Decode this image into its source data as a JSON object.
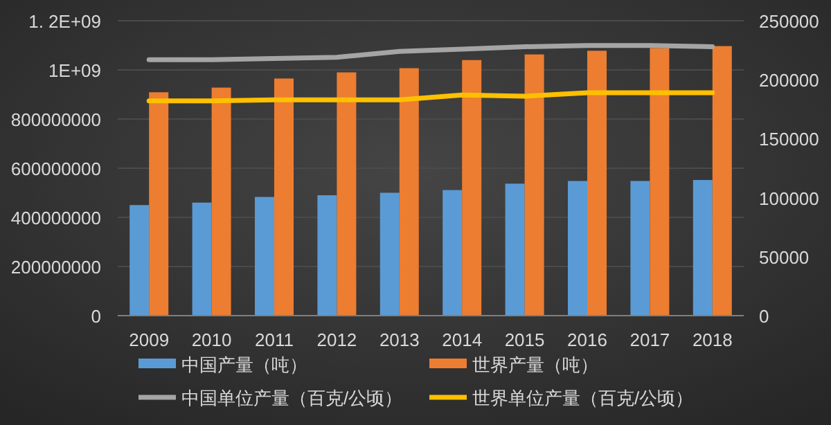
{
  "chart_data": {
    "type": "bar",
    "categories": [
      "2009",
      "2010",
      "2011",
      "2012",
      "2013",
      "2014",
      "2015",
      "2016",
      "2017",
      "2018"
    ],
    "series": [
      {
        "name": "中国产量（吨）",
        "color": "#5b9bd5",
        "values": [
          450000000,
          460000000,
          483000000,
          490000000,
          500000000,
          511000000,
          537000000,
          548000000,
          548000000,
          552000000
        ]
      },
      {
        "name": "世界产量（吨）",
        "color": "#ed7d31",
        "values": [
          909000000,
          928000000,
          965000000,
          990000000,
          1007000000,
          1040000000,
          1063000000,
          1078000000,
          1089000000,
          1097000000
        ]
      },
      {
        "name": "中国单位产量（百克/公顷）",
        "type": "line",
        "axis": "y2",
        "color": "#a5a5a5",
        "values": [
          217000,
          217000,
          218000,
          219000,
          224000,
          226000,
          228000,
          229000,
          229000,
          228000
        ]
      },
      {
        "name": "世界单位产量（百克/公顷）",
        "type": "line",
        "axis": "y2",
        "color": "#ffc000",
        "values": [
          182000,
          182000,
          183000,
          183000,
          183000,
          187000,
          186000,
          189000,
          189000,
          189000
        ]
      }
    ],
    "ylim": [
      0,
      1200000000
    ],
    "yticks": [
      0,
      200000000,
      400000000,
      600000000,
      800000000,
      {
        "value": 1000000000,
        "label": "1E+09"
      },
      {
        "value": 1200000000,
        "label": "1. 2E+09"
      }
    ],
    "y2lim": [
      0,
      250000
    ],
    "y2ticks": [
      0,
      50000,
      100000,
      150000,
      200000,
      250000
    ],
    "grid": "y",
    "legend": "bottom"
  }
}
